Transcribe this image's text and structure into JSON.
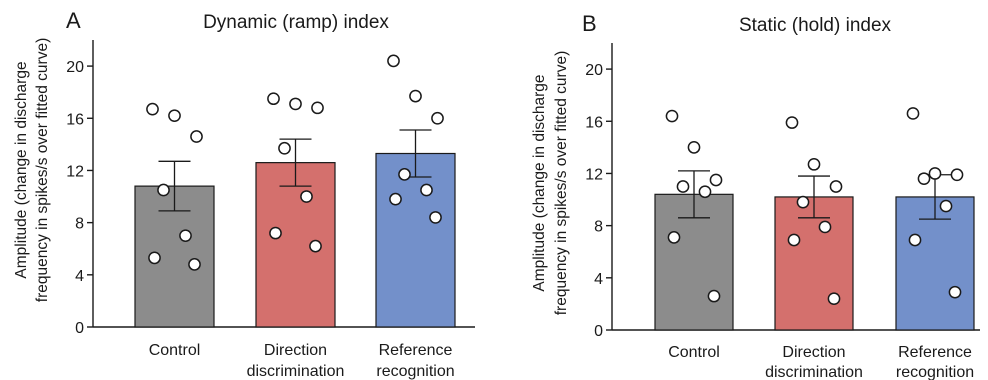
{
  "chart_data": [
    {
      "type": "bar",
      "panel_letter": "A",
      "title": "Dynamic (ramp) index",
      "ylabel_lines": [
        "Amplitude (change in discharge",
        "frequency in spikes/s over fitted curve)"
      ],
      "categories": [
        [
          "Control"
        ],
        [
          "Direction",
          "discrimination"
        ],
        [
          "Reference",
          "recognition"
        ]
      ],
      "values": [
        10.8,
        12.6,
        13.3
      ],
      "sem": [
        1.9,
        1.8,
        1.8
      ],
      "points": [
        [
          16.7,
          16.2,
          14.6,
          10.5,
          7.0,
          5.3,
          4.8
        ],
        [
          17.5,
          17.1,
          16.8,
          13.7,
          10.0,
          7.2,
          6.2
        ],
        [
          20.4,
          17.7,
          16.0,
          11.7,
          10.5,
          9.8,
          8.4
        ]
      ],
      "ylim": [
        0,
        22
      ],
      "yticks": [
        0,
        4,
        8,
        12,
        16,
        20
      ],
      "colors": [
        "#8c8c8c",
        "#d4706d",
        "#7390ca"
      ],
      "grid": false
    },
    {
      "type": "bar",
      "panel_letter": "B",
      "title": "Static (hold) index",
      "ylabel_lines": [
        "Amplitude (change in discharge",
        "frequency in spikes/s over fitted curve)"
      ],
      "categories": [
        [
          "Control"
        ],
        [
          "Direction",
          "discrimination"
        ],
        [
          "Reference",
          "recognition"
        ]
      ],
      "values": [
        10.4,
        10.2,
        10.2
      ],
      "sem": [
        1.8,
        1.6,
        1.7
      ],
      "points": [
        [
          16.4,
          14.0,
          11.5,
          11.0,
          10.6,
          7.1,
          2.6
        ],
        [
          15.9,
          12.7,
          11.0,
          9.8,
          7.9,
          6.9,
          2.4
        ],
        [
          16.6,
          12.0,
          11.9,
          11.6,
          9.5,
          6.9,
          2.9
        ]
      ],
      "ylim": [
        0,
        22
      ],
      "yticks": [
        0,
        4,
        8,
        12,
        16,
        20
      ],
      "colors": [
        "#8c8c8c",
        "#d4706d",
        "#7390ca"
      ],
      "grid": false
    }
  ]
}
